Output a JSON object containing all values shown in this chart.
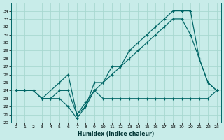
{
  "title": "",
  "xlabel": "Humidex (Indice chaleur)",
  "ylabel": "",
  "bg_color": "#c8ece9",
  "grid_color": "#a8d8d0",
  "line_color": "#006666",
  "xlim": [
    -0.5,
    23.5
  ],
  "ylim": [
    20,
    35
  ],
  "xticks": [
    0,
    1,
    2,
    3,
    4,
    5,
    6,
    7,
    8,
    9,
    10,
    11,
    12,
    13,
    14,
    15,
    16,
    17,
    18,
    19,
    20,
    21,
    22,
    23
  ],
  "yticks": [
    20,
    21,
    22,
    23,
    24,
    25,
    26,
    27,
    28,
    29,
    30,
    31,
    32,
    33,
    34
  ],
  "line1_x": [
    0,
    1,
    2,
    3,
    4,
    5,
    6,
    7,
    8,
    9,
    10,
    11,
    12,
    13,
    14,
    15,
    16,
    17,
    18,
    19,
    20,
    21,
    22,
    23
  ],
  "line1_y": [
    24,
    24,
    24,
    23,
    23,
    23,
    22,
    20.5,
    22,
    24,
    23,
    23,
    23,
    23,
    23,
    23,
    23,
    23,
    23,
    23,
    23,
    23,
    23,
    24
  ],
  "line2_x": [
    0,
    1,
    2,
    3,
    5,
    6,
    7,
    8,
    9,
    10,
    11,
    12,
    13,
    14,
    15,
    16,
    17,
    18,
    19,
    20,
    21,
    22,
    23
  ],
  "line2_y": [
    24,
    24,
    24,
    23,
    25,
    26,
    21,
    22,
    25,
    25,
    27,
    27,
    29,
    30,
    31,
    32,
    33,
    34,
    34,
    34,
    28,
    25,
    24
  ],
  "line3_x": [
    0,
    1,
    2,
    3,
    4,
    5,
    6,
    7,
    8,
    9,
    10,
    11,
    12,
    13,
    14,
    15,
    16,
    17,
    18,
    19,
    20,
    21,
    22,
    23
  ],
  "line3_y": [
    24,
    24,
    24,
    23,
    23,
    24,
    24,
    21,
    22.5,
    24,
    25,
    26,
    27,
    28,
    29,
    30,
    31,
    32,
    33,
    33,
    31,
    28,
    25,
    24
  ]
}
